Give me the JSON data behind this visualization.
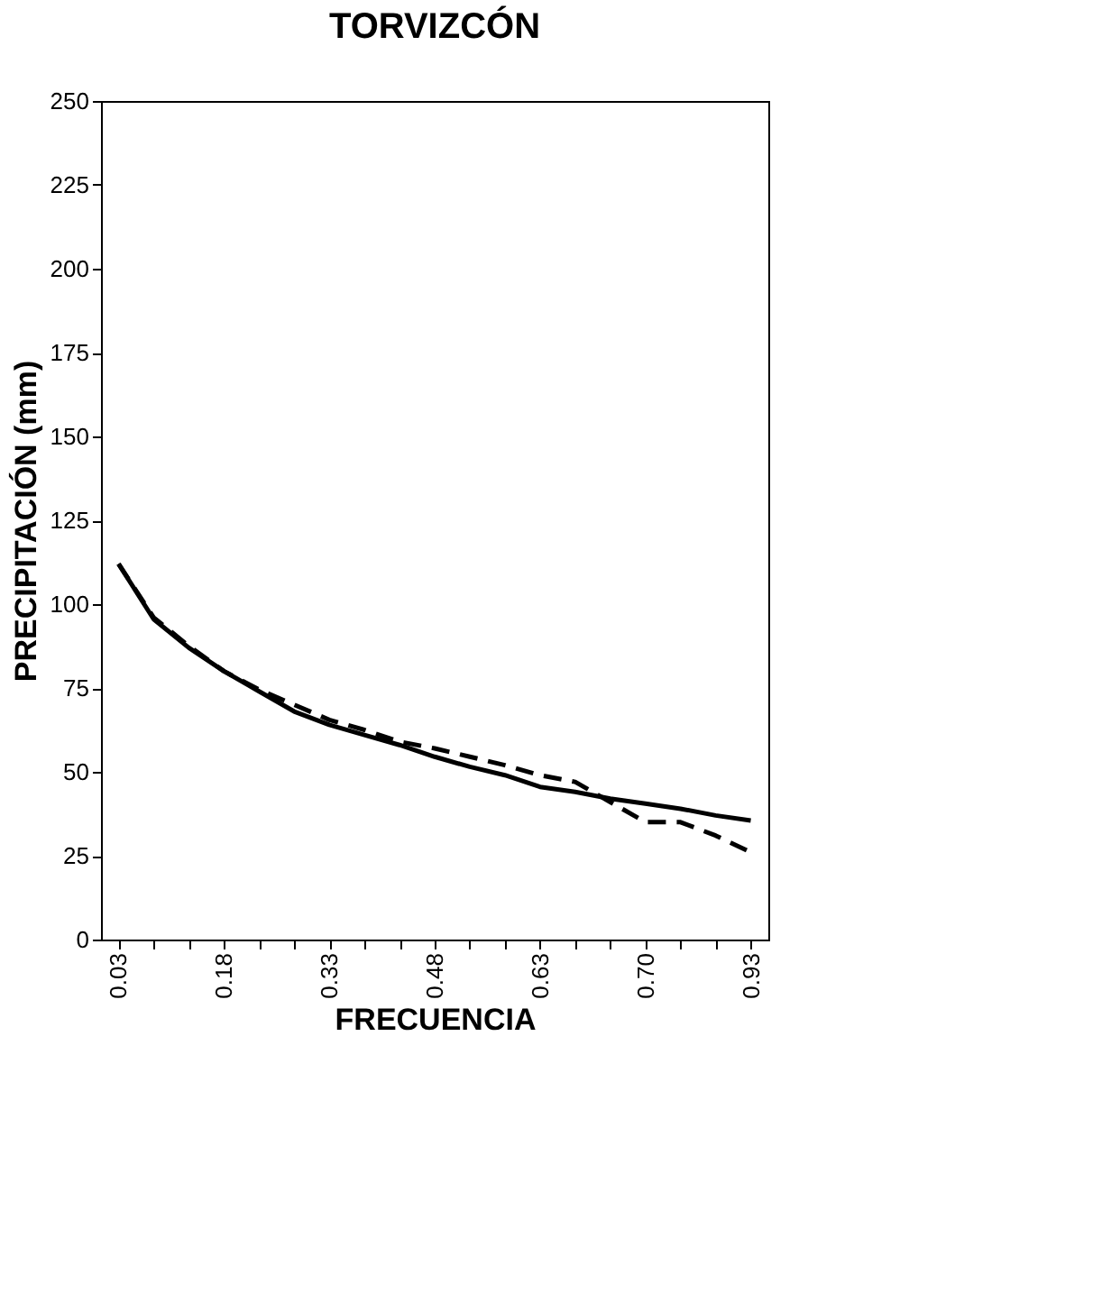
{
  "chart_data": {
    "type": "line",
    "title": "TORVIZCÓN",
    "xlabel": "FRECUENCIA",
    "ylabel": "PRECIPITACIÓN (mm)",
    "categories": [
      "0.03",
      null,
      null,
      "0.18",
      null,
      null,
      "0.33",
      null,
      null,
      "0.48",
      null,
      null,
      "0.63",
      null,
      null,
      "0.70",
      null,
      null,
      "0.93"
    ],
    "series": [
      {
        "color": "#000000",
        "line_style": "solid",
        "values": [
          112,
          95.5,
          87,
          80,
          74,
          68,
          64,
          61,
          58,
          54.5,
          51.5,
          49,
          45.5,
          44,
          42,
          40.5,
          39,
          37,
          35.5
        ]
      },
      {
        "color": "#000000",
        "line_style": "dashed",
        "values": [
          112,
          96,
          87.5,
          80,
          74.5,
          70,
          65.5,
          62.5,
          59,
          57,
          54.5,
          52,
          49,
          47,
          41,
          35,
          35,
          31,
          26
        ]
      }
    ],
    "ylim": [
      0,
      250
    ],
    "yticks": [
      0,
      25,
      50,
      75,
      100,
      125,
      150,
      175,
      200,
      225,
      250
    ],
    "grid": false,
    "legend": false,
    "marker": "none"
  }
}
